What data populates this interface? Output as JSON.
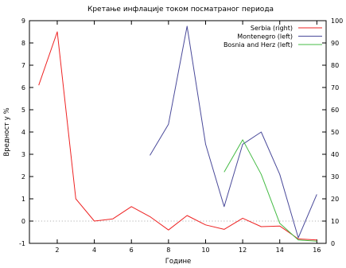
{
  "chart_data": {
    "type": "line",
    "title": "Кретање инфлације током посматраног периода",
    "xlabel": "Године",
    "ylabel": "Вредност у %",
    "x_ticks": [
      2,
      4,
      6,
      8,
      10,
      12,
      14,
      16
    ],
    "xlim": [
      0.5,
      16.5
    ],
    "y_left_ticks": [
      -1,
      0,
      1,
      2,
      3,
      4,
      5,
      6,
      7,
      8,
      9
    ],
    "ylim_left": [
      -1,
      9
    ],
    "y_right_ticks": [
      0,
      10,
      20,
      30,
      40,
      50,
      60,
      70,
      80,
      90,
      100
    ],
    "ylim_right": [
      0,
      100
    ],
    "zero_line": true,
    "legend_position": "top-right",
    "series": [
      {
        "name": "Serbia  (right)",
        "axis": "right",
        "color": "#ee2222",
        "x": [
          1,
          2,
          3,
          4,
          5,
          6,
          7,
          8,
          9,
          10,
          11,
          12,
          13,
          14,
          15,
          16
        ],
        "values": [
          71,
          95,
          20,
          10,
          11,
          16.5,
          12,
          6,
          12.5,
          8.3,
          6.3,
          11.3,
          7.5,
          7.8,
          2,
          1.5
        ]
      },
      {
        "name": "Montenegro  (left)",
        "axis": "left",
        "color": "#4a4a9a",
        "x": [
          7,
          8,
          9,
          10,
          11,
          12,
          13,
          14,
          15,
          16
        ],
        "values": [
          2.95,
          4.35,
          8.75,
          3.45,
          0.65,
          3.45,
          4.0,
          2.1,
          -0.75,
          1.2
        ]
      },
      {
        "name": "Bosnia and Herz  (left)",
        "axis": "left",
        "color": "#44bb44",
        "x": [
          11,
          12,
          13,
          14,
          15,
          16
        ],
        "values": [
          2.2,
          3.65,
          2.1,
          -0.1,
          -0.85,
          -0.9
        ]
      }
    ]
  }
}
